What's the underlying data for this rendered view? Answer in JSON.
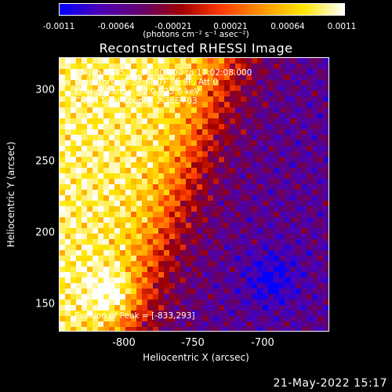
{
  "colorbar": {
    "ticks": [
      "-0.0011",
      "-0.00064",
      "-0.00021",
      "0.00021",
      "0.00064",
      "0.0011"
    ],
    "unit": "(photons cm⁻² s⁻¹ asec⁻²)"
  },
  "title": "Reconstructed RHESSI Image",
  "annotations": {
    "time": "15-Jun-2015 17:01:00.000 to 17:02:08.000",
    "detectors": "Detectors: 3F 5F 6F 7F 8F 9F, Att 0",
    "energy": "Energy Range: 12.0 - 25.0 keV",
    "clean": "Clean    Total Counts: 2.36E+03",
    "peak": "Position of Peak = [-833,293]"
  },
  "axes": {
    "ylabel": "Heliocentric Y (arcsec)",
    "xlabel": "Heliocentric X (arcsec)",
    "yticks": [
      "300",
      "250",
      "200",
      "150"
    ],
    "xticks": [
      "-800",
      "-750",
      "-700"
    ]
  },
  "footer": {
    "timestamp": "21-May-2022 15:17"
  },
  "colors": {
    "background": "#000000",
    "colormap": [
      "#0000ff",
      "#4b00b4",
      "#64006e",
      "#a00000",
      "#ff3c00",
      "#ff9600",
      "#ffe600",
      "#ffffff"
    ]
  }
}
